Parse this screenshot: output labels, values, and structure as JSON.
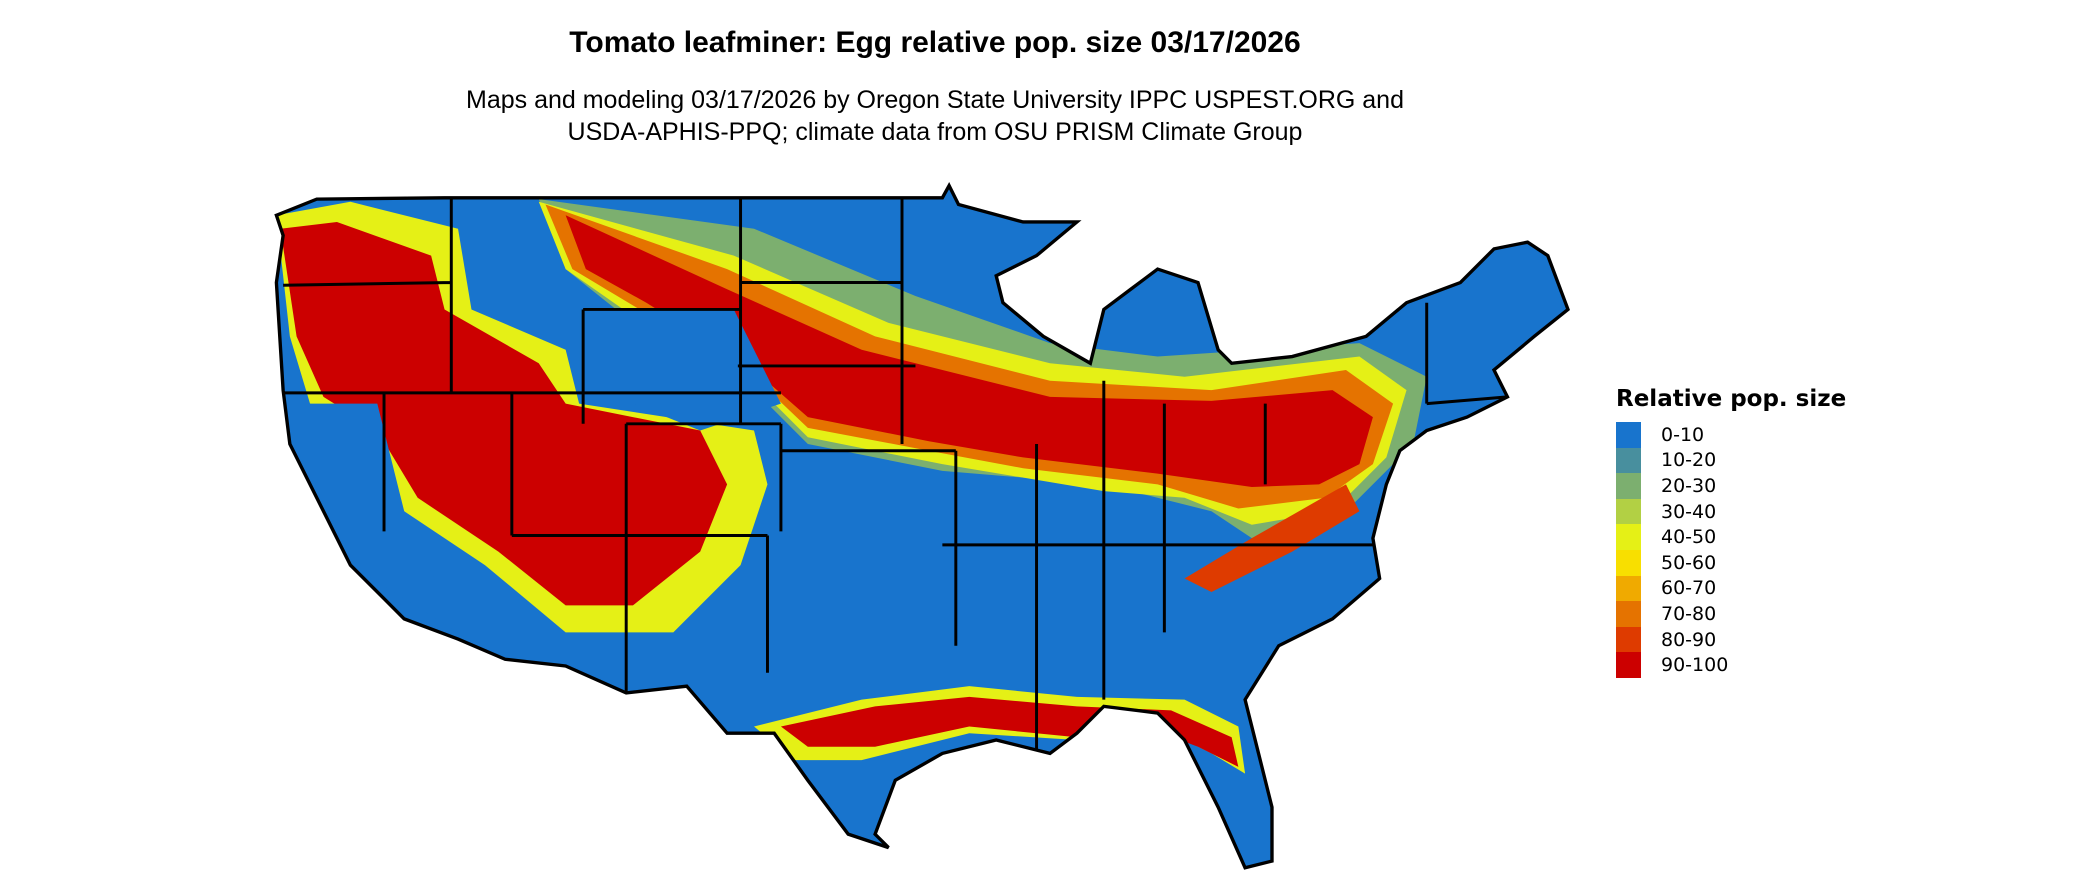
{
  "title": "Tomato leafminer: Egg relative pop. size 03/17/2026",
  "subtitle_line1": "Maps and modeling 03/17/2026 by Oregon State University IPPC USPEST.ORG and",
  "subtitle_line2": "USDA-APHIS-PPQ; climate data from OSU PRISM Climate Group",
  "map": {
    "region": "Contiguous United States",
    "background_class_color": "#1874CD"
  },
  "legend": {
    "title": "Relative pop. size",
    "items": [
      {
        "label": "0-10",
        "color": "#1874CD"
      },
      {
        "label": "10-20",
        "color": "#488F9E"
      },
      {
        "label": "20-30",
        "color": "#7CAF6F"
      },
      {
        "label": "30-40",
        "color": "#B2D044"
      },
      {
        "label": "40-50",
        "color": "#E5F016"
      },
      {
        "label": "50-60",
        "color": "#F8DF00"
      },
      {
        "label": "60-70",
        "color": "#F0AA00"
      },
      {
        "label": "70-80",
        "color": "#E57300"
      },
      {
        "label": "80-90",
        "color": "#DE3B00"
      },
      {
        "label": "90-100",
        "color": "#CC0000"
      }
    ]
  }
}
